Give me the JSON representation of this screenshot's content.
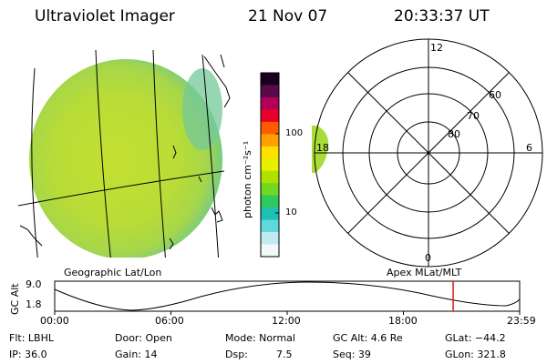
{
  "header": {
    "title": "Ultraviolet Imager",
    "date": "21 Nov 07",
    "time": "20:33:37 UT"
  },
  "colorbar": {
    "label": "photon cm⁻²s⁻¹",
    "tick_100": "100",
    "tick_10": "10",
    "colors": [
      "#1a0020",
      "#5a0a4a",
      "#b0005a",
      "#e8002a",
      "#ff5a00",
      "#ffa000",
      "#ffe000",
      "#e8f000",
      "#b0e000",
      "#70d820",
      "#30c860",
      "#20c0b0",
      "#60d8e0",
      "#c0ecf0",
      "#f0f8f8"
    ]
  },
  "left_panel": {
    "label": "Geographic Lat/Lon"
  },
  "right_panel": {
    "label": "Apex MLat/MLT",
    "mlt_labels": {
      "top": "12",
      "bottom": "0",
      "left": "18",
      "right": "6"
    },
    "lat_labels": [
      "60",
      "70",
      "80"
    ]
  },
  "altitude_plot": {
    "ylabel": "GC Alt",
    "ymax": "9.0",
    "ymin": "1.8",
    "xticks": [
      "00:00",
      "06:00",
      "12:00",
      "18:00",
      "23:59"
    ],
    "current_time_fraction": 0.857
  },
  "status": {
    "flt": "Flt: LBHL",
    "ip": "IP: 36.0",
    "door": "Door: Open",
    "gain": "Gain: 14",
    "mode": "Mode: Normal",
    "dsp_label": "Dsp:",
    "dsp_value": "7.5",
    "gcalt": "GC Alt: 4.6 Re",
    "seq": "Seq: 39",
    "glat": "GLat: −44.2",
    "glon": "GLon: 321.8"
  }
}
